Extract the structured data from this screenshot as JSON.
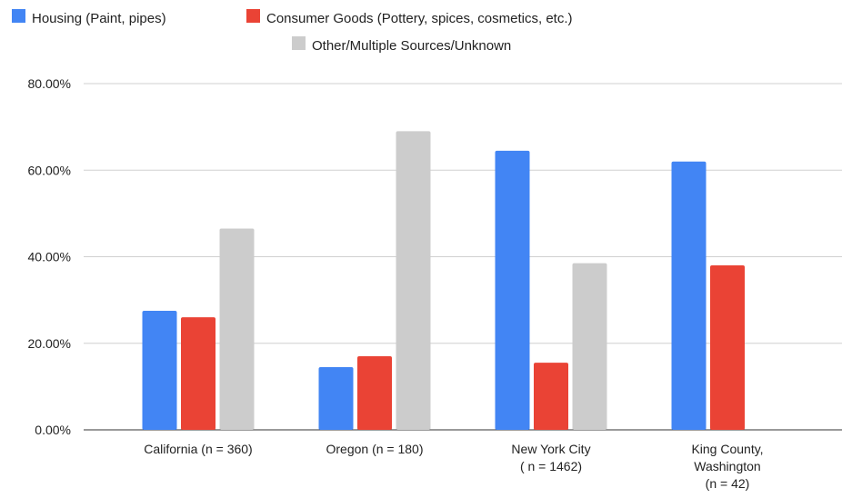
{
  "chart_data": {
    "type": "bar",
    "title": "",
    "xlabel": "",
    "ylabel": "",
    "categories": [
      [
        "California  (n = 360)"
      ],
      [
        "Oregon (n = 180)"
      ],
      [
        "New York City",
        "( n = 1462)"
      ],
      [
        "King County,",
        "Washington",
        "(n = 42)"
      ]
    ],
    "series": [
      {
        "name": "Housing (Paint, pipes)",
        "color": "#4285f4",
        "values": [
          27.5,
          14.5,
          64.5,
          62.0
        ]
      },
      {
        "name": "Consumer Goods (Pottery, spices, cosmetics, etc.)",
        "color": "#ea4335",
        "values": [
          26.0,
          17.0,
          15.5,
          38.0
        ]
      },
      {
        "name": "Other/Multiple Sources/Unknown",
        "color": "#cccccc",
        "values": [
          46.5,
          69.0,
          38.5,
          null
        ]
      }
    ],
    "y_ticks": [
      "0.00%",
      "20.00%",
      "40.00%",
      "60.00%",
      "80.00%"
    ],
    "ylim": [
      0,
      80
    ],
    "grid": true,
    "legend_position": "top"
  }
}
